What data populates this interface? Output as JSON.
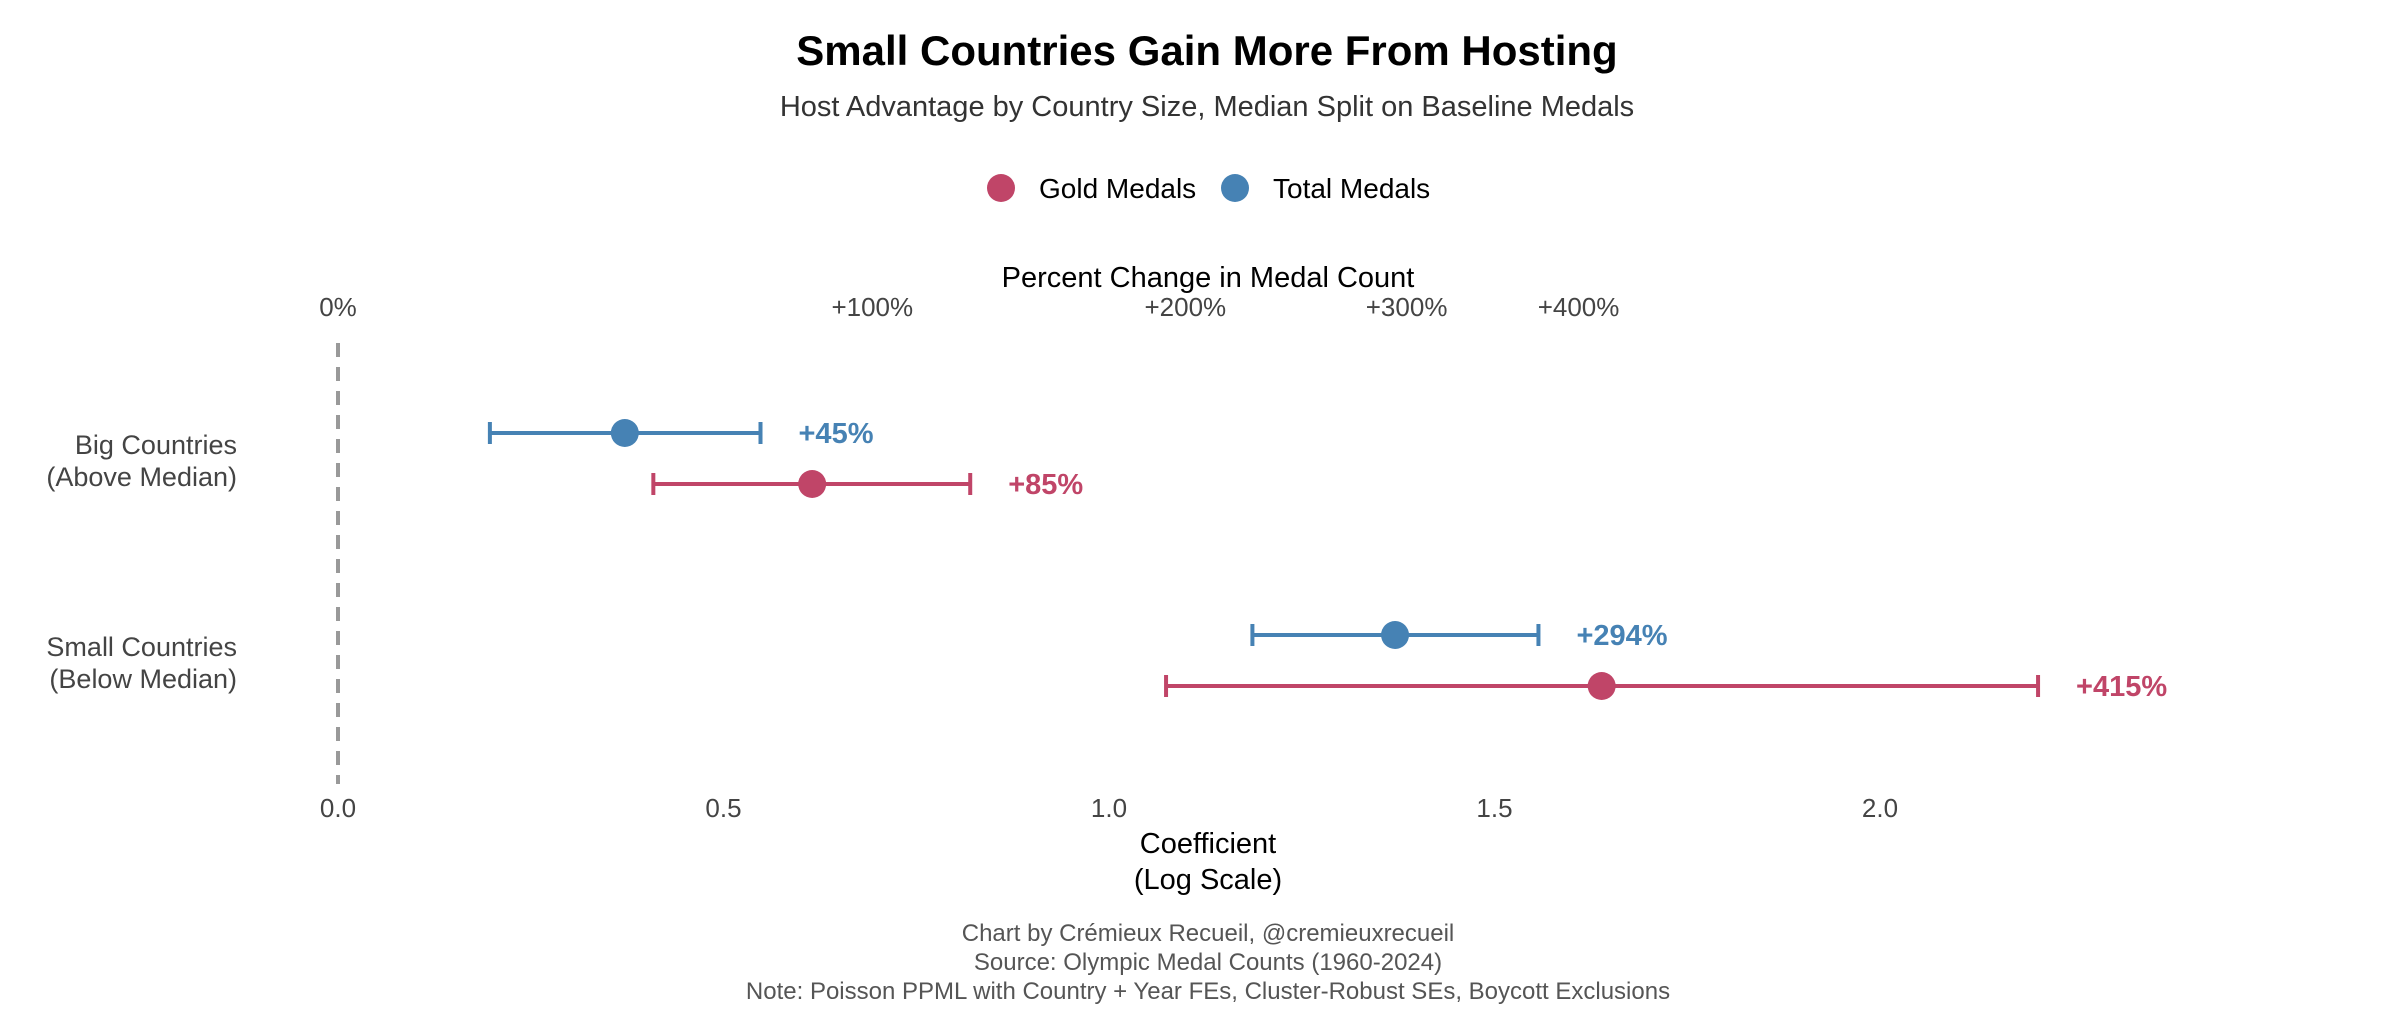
{
  "chart_data": {
    "type": "dot-errorbar",
    "title": "Small Countries Gain More From Hosting",
    "subtitle": "Host Advantage by Country Size, Median Split on Baseline Medals",
    "xlabel": "Coefficient",
    "xlabel_line2": "(Log Scale)",
    "top_axis_label": "Percent Change in Medal Count",
    "xlim": [
      0,
      2.6
    ],
    "x_ticks": [
      {
        "value": 0,
        "label": "0.0"
      },
      {
        "value": 0.5,
        "label": "0.5"
      },
      {
        "value": 1.0,
        "label": "1.0"
      },
      {
        "value": 1.5,
        "label": "1.5"
      },
      {
        "value": 2.0,
        "label": "2.0"
      }
    ],
    "top_ticks": [
      {
        "value": 0,
        "label": "0%"
      },
      {
        "value": 0.693,
        "label": "+100%"
      },
      {
        "value": 1.099,
        "label": "+200%"
      },
      {
        "value": 1.386,
        "label": "+300%"
      },
      {
        "value": 1.609,
        "label": "+400%"
      }
    ],
    "reference_line": 0,
    "legend": {
      "placement": "top-center",
      "entries": [
        {
          "name": "Gold Medals",
          "color": "#C04568"
        },
        {
          "name": "Total Medals",
          "color": "#4682B4"
        }
      ]
    },
    "categories": [
      {
        "label_line1": "Big Countries",
        "label_line2": "(Above Median)"
      },
      {
        "label_line1": "Small Countries",
        "label_line2": "(Below Median)"
      }
    ],
    "series": [
      {
        "name": "Total Medals",
        "color": "#4682B4",
        "points": [
          {
            "estimate": 0.372,
            "ci_low": 0.197,
            "ci_high": 0.548,
            "label": "+45%"
          },
          {
            "estimate": 1.371,
            "ci_low": 1.186,
            "ci_high": 1.557,
            "label": "+294%"
          }
        ]
      },
      {
        "name": "Gold Medals",
        "color": "#C04568",
        "points": [
          {
            "estimate": 0.615,
            "ci_low": 0.409,
            "ci_high": 0.82,
            "label": "+85%"
          },
          {
            "estimate": 1.639,
            "ci_low": 1.074,
            "ci_high": 2.205,
            "label": "+415%"
          }
        ]
      }
    ]
  },
  "footer": {
    "line1": "Chart by Crémieux Recueil, @cremieuxrecueil",
    "line2": "Source: Olympic Medal Counts (1960-2024)",
    "line3": "Note: Poisson PPML with Country + Year FEs, Cluster-Robust SEs, Boycott Exclusions"
  }
}
